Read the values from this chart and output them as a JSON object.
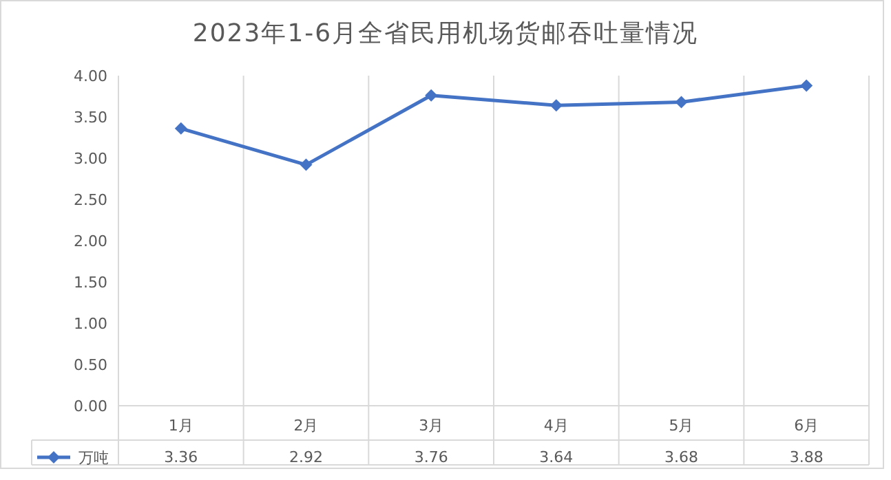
{
  "chart_data": {
    "type": "line",
    "title": "2023年1-6月全省民用机场货邮吞吐量情况",
    "categories": [
      "1月",
      "2月",
      "3月",
      "4月",
      "5月",
      "6月"
    ],
    "series": [
      {
        "name": "万吨",
        "color": "#4472c4",
        "values": [
          3.36,
          2.92,
          3.76,
          3.64,
          3.68,
          3.88
        ]
      }
    ],
    "ylim": [
      0,
      4
    ],
    "yticks": [
      {
        "value": 0,
        "label": "0.00"
      },
      {
        "value": 0.5,
        "label": "0.50"
      },
      {
        "value": 1,
        "label": "1.00"
      },
      {
        "value": 1.5,
        "label": "1.50"
      },
      {
        "value": 2,
        "label": "2.00"
      },
      {
        "value": 2.5,
        "label": "2.50"
      },
      {
        "value": 3,
        "label": "3.00"
      },
      {
        "value": 3.5,
        "label": "3.50"
      },
      {
        "value": 4,
        "label": "4.00"
      }
    ],
    "grid": "x",
    "legend": "bottom",
    "marker": "diamond",
    "line_style": "solid",
    "data_labels": true
  }
}
